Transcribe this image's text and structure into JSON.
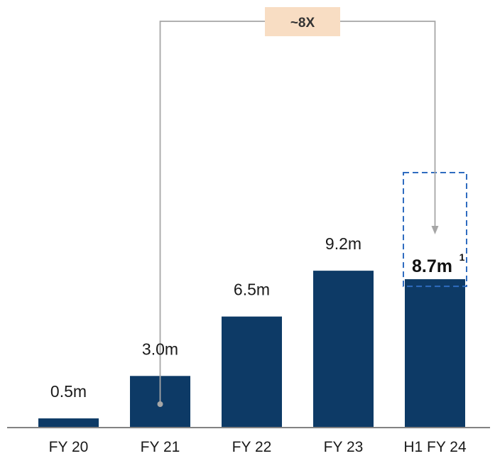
{
  "chart_data": {
    "type": "bar",
    "title": "",
    "xlabel": "",
    "ylabel": "",
    "categories": [
      "FY 20",
      "FY 21",
      "FY 22",
      "FY 23",
      "H1 FY 24"
    ],
    "values": [
      0.5,
      3.0,
      6.5,
      9.2,
      8.7
    ],
    "data_labels": [
      "0.5m",
      "3.0m",
      "6.5m",
      "9.2m",
      "8.7m"
    ],
    "highlighted_label_footnote": "1",
    "ylim": [
      0,
      10
    ],
    "grid": false,
    "legend": "none",
    "bar_color": "#0d3a66",
    "annotation": {
      "text": "~8X",
      "from_category": "FY 21",
      "to_category": "H1 FY 24",
      "box_color": "#f8ddc3",
      "line_color": "#a6a6a6",
      "highlight_border_color": "#2f6cc0"
    }
  }
}
